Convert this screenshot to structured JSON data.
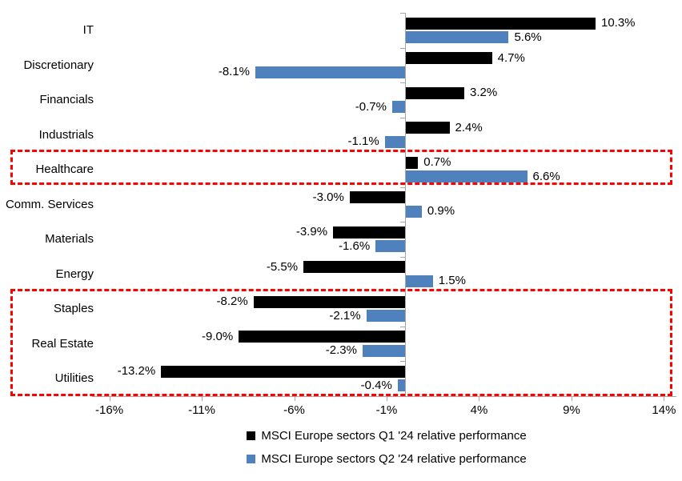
{
  "chart_data": {
    "type": "bar",
    "orientation": "horizontal",
    "title": "",
    "categories": [
      "IT",
      "Discretionary",
      "Financials",
      "Industrials",
      "Healthcare",
      "Comm. Services",
      "Materials",
      "Energy",
      "Staples",
      "Real Estate",
      "Utilities"
    ],
    "series": [
      {
        "name": "MSCI Europe sectors Q1 '24 relative performance",
        "color": "#000000",
        "values": [
          10.3,
          4.7,
          3.2,
          2.4,
          0.7,
          -3.0,
          -3.9,
          -5.5,
          -8.2,
          -9.0,
          -13.2
        ],
        "labels": [
          "10.3%",
          "4.7%",
          "3.2%",
          "2.4%",
          "0.7%",
          "-3.0%",
          "-3.9%",
          "-5.5%",
          "-8.2%",
          "-9.0%",
          "-13.2%"
        ]
      },
      {
        "name": "MSCI Europe sectors Q2 '24 relative performance",
        "color": "#4F81BD",
        "values": [
          5.6,
          -8.1,
          -0.7,
          -1.1,
          6.6,
          0.9,
          -1.6,
          1.5,
          -2.1,
          -2.3,
          -0.4
        ],
        "labels": [
          "5.6%",
          "-8.1%",
          "-0.7%",
          "-1.1%",
          "6.6%",
          "0.9%",
          "-1.6%",
          "1.5%",
          "-2.1%",
          "-2.3%",
          "-0.4%"
        ]
      }
    ],
    "x_axis": {
      "tick_labels": [
        "-16%",
        "-11%",
        "-6%",
        "-1%",
        "4%",
        "9%",
        "14%"
      ],
      "tick_values": [
        -16,
        -11,
        -6,
        -1,
        4,
        9,
        14
      ],
      "min": -16.5,
      "max": 14.5,
      "grid": false
    },
    "value_label_format": "one-decimal-percent",
    "legend_position": "bottom",
    "colors": {
      "q1_bar": "#000000",
      "q2_bar": "#4F81BD",
      "axis": "#a6a6a6",
      "highlight_box": "#ff0000",
      "background": "#ffffff"
    },
    "annotations": [
      {
        "type": "dashed-box",
        "name": "healthcare-highlight",
        "start_category": "Healthcare",
        "end_category": "Healthcare",
        "color": "#ff0000"
      },
      {
        "type": "dashed-box",
        "name": "defensives-highlight",
        "start_category": "Staples",
        "end_category": "Utilities",
        "color": "#ff0000"
      }
    ]
  }
}
